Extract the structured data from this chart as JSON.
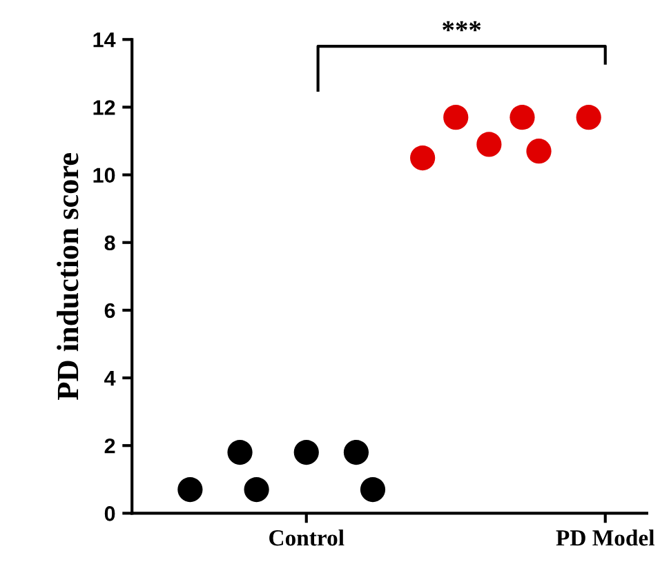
{
  "chart_data": {
    "type": "scatter",
    "ylabel": "PD induction score",
    "categories": [
      null,
      null,
      null,
      null,
      null,
      null,
      null,
      "Control",
      null,
      null,
      null,
      null,
      null,
      null,
      null,
      null,
      null,
      null,
      null,
      null,
      null,
      null,
      null,
      null,
      null,
      "PD Model"
    ],
    "series": [
      {
        "color": "#000000",
        "values": [
          0.7,
          null,
          null,
          1.8,
          0.7,
          null,
          null,
          1.8,
          null,
          null,
          1.8,
          0.7,
          null,
          null,
          null,
          null,
          null,
          null,
          null,
          null,
          null,
          null,
          null,
          null,
          null,
          null
        ]
      },
      {
        "color": "#e00000",
        "values": [
          null,
          null,
          null,
          null,
          null,
          null,
          null,
          null,
          null,
          null,
          null,
          null,
          null,
          null,
          10.5,
          null,
          11.7,
          null,
          10.9,
          null,
          11.7,
          10.7,
          null,
          null,
          11.7,
          null
        ]
      }
    ],
    "ylim": [
      0,
      14
    ],
    "yticks": [
      0,
      2,
      4,
      6,
      8,
      10,
      12,
      14
    ],
    "marker": "circle",
    "grid": false,
    "legend": false,
    "annotations": [
      "***"
    ]
  }
}
